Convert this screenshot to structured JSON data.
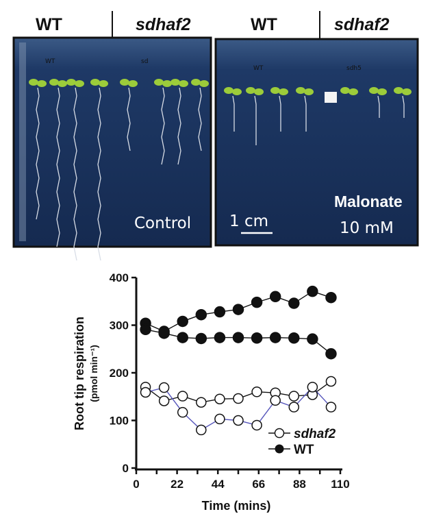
{
  "panels": [
    {
      "header_left": "WT",
      "header_right": "sdhaf2",
      "hand_left": "WT",
      "hand_right": "sd",
      "caption": "Control"
    },
    {
      "header_left": "WT",
      "header_right": "sdhaf2",
      "hand_left": "WT",
      "hand_right": "sdh5",
      "caption_line1": "Malonate",
      "caption_line2": "10 mM",
      "scale_bar": "1 cm"
    }
  ],
  "colors": {
    "plate": "#1f3a66",
    "seedling": "#9ccc3a",
    "root": "#d8dde6",
    "blue_line": "#5555bb"
  },
  "chart_data": {
    "type": "line",
    "xlabel": "Time (mins)",
    "ylabel": "Root tip respiration",
    "ylabel_unit": "(pmol min⁻¹)",
    "xlim": [
      0,
      115
    ],
    "ylim": [
      0,
      400
    ],
    "xticks": [
      0,
      22,
      44,
      66,
      88,
      110
    ],
    "yticks": [
      0,
      100,
      200,
      300,
      400
    ],
    "x": [
      5,
      15,
      25,
      35,
      45,
      55,
      65,
      75,
      85,
      95,
      105
    ],
    "legend_placement": "bottom-right",
    "legend": [
      {
        "label": "sdhaf2",
        "marker": "open-circle"
      },
      {
        "label": "WT",
        "marker": "filled-circle"
      }
    ],
    "series": [
      {
        "group": "WT",
        "marker": "filled",
        "line_color": "#111111",
        "values": [
          304,
          287,
          308,
          322,
          328,
          333,
          348,
          360,
          346,
          371,
          358
        ]
      },
      {
        "group": "WT",
        "marker": "filled",
        "line_color": "#111111",
        "values": [
          291,
          283,
          274,
          272,
          274,
          274,
          273,
          274,
          273,
          271,
          240
        ]
      },
      {
        "group": "sdhaf2",
        "marker": "open",
        "line_color": "#111111",
        "values": [
          170,
          141,
          151,
          138,
          145,
          146,
          160,
          158,
          151,
          154,
          182
        ]
      },
      {
        "group": "sdhaf2",
        "marker": "open",
        "line_color": "#5555bb",
        "values": [
          159,
          169,
          117,
          80,
          103,
          100,
          90,
          142,
          128,
          170,
          128
        ]
      }
    ]
  }
}
